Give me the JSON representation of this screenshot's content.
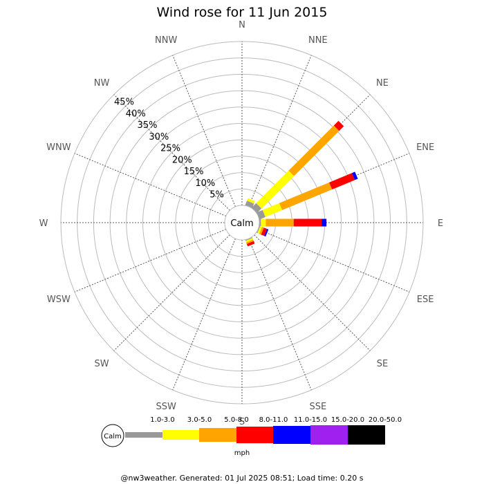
{
  "chart_data": {
    "type": "windrose",
    "title": "Wind rose for 11 Jun 2015",
    "center_label": "Calm",
    "directions": [
      "N",
      "NNE",
      "NE",
      "ENE",
      "E",
      "ESE",
      "SE",
      "SSE",
      "S",
      "SSW",
      "SW",
      "WSW",
      "W",
      "WNW",
      "NW",
      "NNW"
    ],
    "radial_ticks": [
      5,
      10,
      15,
      20,
      25,
      30,
      35,
      40,
      45
    ],
    "radial_tick_suffix": "%",
    "rmax": 50,
    "bins": [
      {
        "label": "1.0-3.0",
        "color": "#999999"
      },
      {
        "label": "3.0-5.0",
        "color": "#ffff00"
      },
      {
        "label": "5.0-8.0",
        "color": "#ffa500"
      },
      {
        "label": "8.0-11.0",
        "color": "#ff0000"
      },
      {
        "label": "11.0-15.0",
        "color": "#0000ff"
      },
      {
        "label": "15.0-20.0",
        "color": "#a020f0"
      },
      {
        "label": "20.0-50.0",
        "color": "#000000"
      }
    ],
    "series": [
      {
        "direction": "NNE",
        "values": [
          1.5,
          0.8,
          0,
          0,
          0,
          0,
          0
        ]
      },
      {
        "direction": "NE",
        "values": [
          2.0,
          14.0,
          19.5,
          2.0,
          0,
          0,
          0
        ]
      },
      {
        "direction": "ENE",
        "values": [
          2.0,
          5.5,
          16.5,
          7.5,
          1.0,
          0,
          0
        ]
      },
      {
        "direction": "E",
        "values": [
          0.5,
          1.5,
          8.5,
          8.5,
          1.5,
          0,
          0
        ]
      },
      {
        "direction": "ESE",
        "values": [
          0.3,
          0.6,
          0.6,
          1.0,
          0.5,
          0,
          0
        ]
      },
      {
        "direction": "SSE",
        "values": [
          0.3,
          0.5,
          0.5,
          0.8,
          0,
          0,
          0
        ]
      }
    ],
    "legend": {
      "calm_label": "Calm",
      "units": "mph"
    },
    "footer": "@nw3weather. Generated: 01 Jul 2025 08:51; Load time: 0.20 s"
  }
}
